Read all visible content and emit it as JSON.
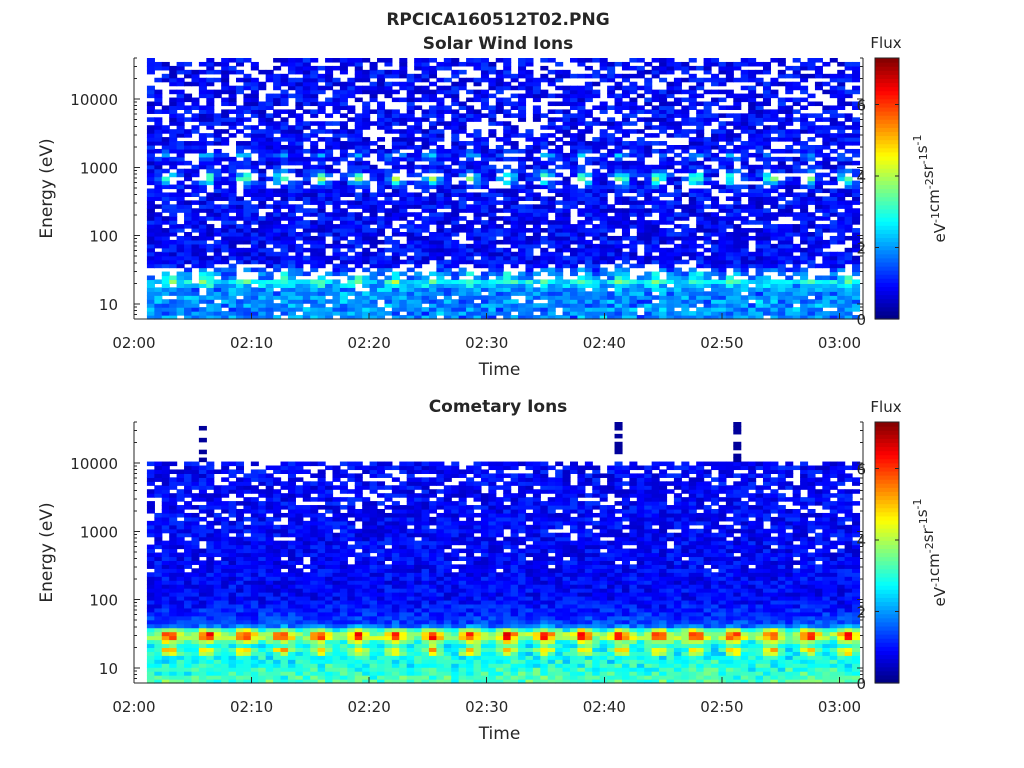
{
  "figure": {
    "title": "RPCICA160512T02.PNG"
  },
  "chart_data": [
    {
      "type": "heatmap",
      "title": "Solar Wind Ions",
      "xlabel": "Time",
      "ylabel": "Energy (eV)",
      "x_ticks": [
        "02:00",
        "02:10",
        "02:20",
        "02:30",
        "02:40",
        "02:50",
        "03:00"
      ],
      "x_range_minutes": [
        0,
        62
      ],
      "y_ticks": [
        10,
        100,
        1000,
        10000
      ],
      "y_ticks_labels": [
        "10",
        "100",
        "1000",
        "10000"
      ],
      "y_scale": "log",
      "y_range": [
        6,
        40000
      ],
      "colorbar": {
        "title": "Flux",
        "label": "eV-1cm-2sr-1s-1",
        "label_parts": [
          [
            "eV",
            "-1"
          ],
          [
            "cm",
            "-2"
          ],
          [
            "sr",
            "-1"
          ],
          [
            "s",
            "-1"
          ]
        ],
        "range": [
          0,
          7.3
        ],
        "ticks": [
          0,
          2,
          4,
          6
        ],
        "tick_labels": [
          "0",
          "2",
          "4",
          "6"
        ],
        "colormap": "jet"
      },
      "features": {
        "data_start_minute": 1.1,
        "data_end_minute": 61.7,
        "peak_energy_eV": 700,
        "peak_flux": 3.9,
        "secondary_energy_eV": 1500,
        "secondary_flux": 2.9,
        "low_energy_band_eV": 25,
        "low_energy_band_flux": 3.1,
        "period_minutes": 3.2,
        "background_flux": 0.9,
        "top_energy_eV": 40000
      }
    },
    {
      "type": "heatmap",
      "title": "Cometary Ions",
      "xlabel": "Time",
      "ylabel": "Energy (eV)",
      "x_ticks": [
        "02:00",
        "02:10",
        "02:20",
        "02:30",
        "02:40",
        "02:50",
        "03:00"
      ],
      "x_range_minutes": [
        0,
        62
      ],
      "y_ticks": [
        10,
        100,
        1000,
        10000
      ],
      "y_ticks_labels": [
        "10",
        "100",
        "1000",
        "10000"
      ],
      "y_scale": "log",
      "y_range": [
        6,
        40000
      ],
      "colorbar": {
        "title": "Flux",
        "label": "eV-1cm-2sr-1s-1",
        "label_parts": [
          [
            "eV",
            "-1"
          ],
          [
            "cm",
            "-2"
          ],
          [
            "sr",
            "-1"
          ],
          [
            "s",
            "-1"
          ]
        ],
        "range": [
          0,
          7.3
        ],
        "ticks": [
          0,
          2,
          4,
          6
        ],
        "tick_labels": [
          "0",
          "2",
          "4",
          "6"
        ],
        "colormap": "jet"
      },
      "features": {
        "data_start_minute": 1.1,
        "data_end_minute": 61.7,
        "peak_energy_eV": 30,
        "peak_flux": 6.2,
        "secondary_energy_eV": 18,
        "secondary_flux": 4.6,
        "period_minutes": 3.2,
        "background_flux": 0.9,
        "top_energy_eV": 11000,
        "sparse_columns_minutes": [
          5.4,
          40.8,
          50.8
        ],
        "sparse_columns_top_eV": 38000
      }
    }
  ]
}
